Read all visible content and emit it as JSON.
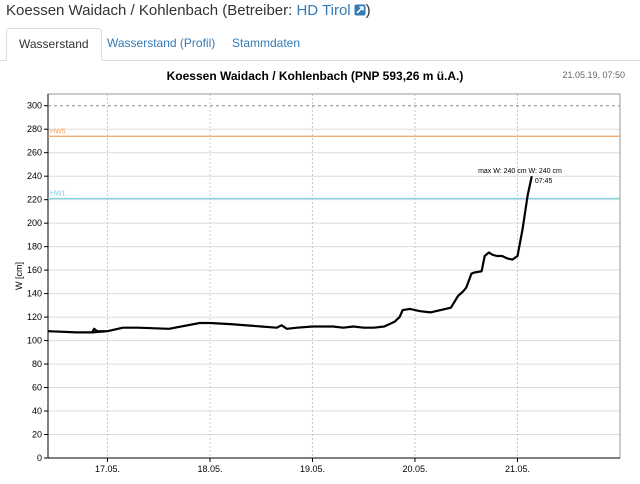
{
  "header": {
    "station": "Koessen Waidach / Kohlenbach",
    "operator_prefix": "(Betreiber: ",
    "operator_name": "HD Tirol",
    "operator_suffix": ")",
    "link_icon": "external-link-icon"
  },
  "tabs": [
    {
      "label": "Wasserstand",
      "active": true
    },
    {
      "label": "Wasserstand (Profil)",
      "active": false
    },
    {
      "label": "Stammdaten",
      "active": false
    }
  ],
  "chart_data": {
    "type": "line",
    "title": "Koessen Waidach / Kohlenbach (PNP 593,26 m ü.A.)",
    "timestamp": "21.05.19, 07:50",
    "ylabel": "W [cm]",
    "ylim": [
      0,
      310
    ],
    "yticks": [
      0,
      20,
      40,
      60,
      80,
      100,
      120,
      140,
      160,
      180,
      200,
      220,
      240,
      260,
      280,
      300
    ],
    "xlim": [
      -0.58,
      5.0
    ],
    "xticks": [
      {
        "value": 0,
        "label": "17.05."
      },
      {
        "value": 1,
        "label": "18.05."
      },
      {
        "value": 2,
        "label": "19.05."
      },
      {
        "value": 3,
        "label": "20.05."
      },
      {
        "value": 4,
        "label": "21.05."
      }
    ],
    "grid": true,
    "reference_lines": [
      {
        "label": "HW5",
        "value": 274,
        "color": "#f7a35c"
      },
      {
        "label": "HW1",
        "value": 221,
        "color": "#7cd3e8"
      }
    ],
    "dashed_line": {
      "value": 300,
      "color": "#888888"
    },
    "annotation": {
      "line1": "max W: 240 cm W: 240 cm",
      "line2": "07:45",
      "x": 4.14,
      "y": 240
    },
    "series": [
      {
        "color": "#000000",
        "x": [
          -0.58,
          -0.3,
          -0.15,
          0.0,
          -0.15,
          -0.13,
          -0.1,
          0.0,
          0.15,
          0.3,
          0.6,
          0.9,
          1.0,
          1.2,
          1.5,
          1.65,
          1.7,
          1.75,
          1.85,
          2.0,
          2.2,
          2.3,
          2.4,
          2.5,
          2.6,
          2.7,
          2.75,
          2.8,
          2.85,
          2.88,
          2.95,
          3.05,
          3.15,
          3.25,
          3.35,
          3.42,
          3.47,
          3.5,
          3.55,
          3.58,
          3.65,
          3.68,
          3.72,
          3.76,
          3.8,
          3.85,
          3.9,
          3.95,
          4.0,
          4.05,
          4.1,
          4.14
        ],
        "y": [
          108,
          107,
          107,
          108,
          107,
          110,
          108,
          108,
          111,
          111,
          110,
          115,
          115,
          114,
          112,
          111,
          113,
          110,
          111,
          112,
          112,
          111,
          112,
          111,
          111,
          112,
          114,
          116,
          120,
          126,
          127,
          125,
          124,
          126,
          128,
          138,
          142,
          145,
          157,
          158,
          159,
          172,
          175,
          173,
          172,
          172,
          170,
          169,
          172,
          195,
          224,
          240
        ]
      }
    ]
  }
}
